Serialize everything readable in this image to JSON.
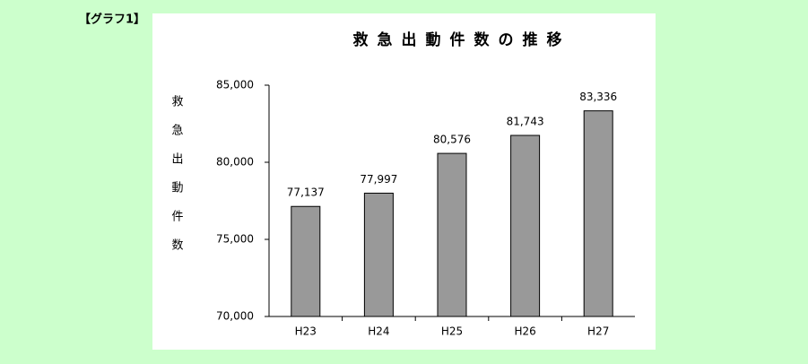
{
  "page_label": "【グラフ1】",
  "chart_data": {
    "type": "bar",
    "title": "救急出動件数の推移",
    "y_label": "救急出動件数",
    "categories": [
      "H23",
      "H24",
      "H25",
      "H26",
      "H27"
    ],
    "values": [
      77137,
      77997,
      80576,
      81743,
      83336
    ],
    "value_labels": [
      "77,137",
      "77,997",
      "80,576",
      "81,743",
      "83,336"
    ],
    "color": "#999999",
    "ylim": [
      70000,
      85000
    ],
    "yticks": [
      {
        "value": 70000,
        "label": "70,000"
      },
      {
        "value": 75000,
        "label": "75,000"
      },
      {
        "value": 80000,
        "label": "80,000"
      },
      {
        "value": 85000,
        "label": "85,000"
      }
    ],
    "grid": false
  }
}
